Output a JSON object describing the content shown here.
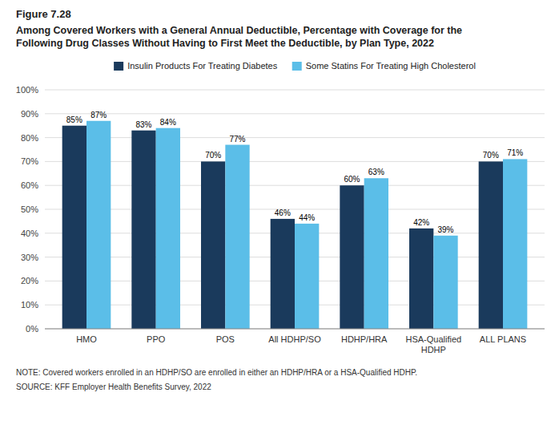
{
  "chart_data": {
    "type": "bar",
    "title": "Among Covered Workers with a General Annual Deductible, Percentage with Coverage for the\nFollowing Drug Classes Without Having to First Meet the Deductible, by Plan Type, 2022",
    "annotations": [
      "Figure 7.28",
      "NOTE: Covered workers enrolled in an HDHP/SO are enrolled in either an HDHP/HRA or a HSA-Qualified HDHP.",
      "SOURCE: KFF Employer Health Benefits Survey, 2022"
    ],
    "categories": [
      "HMO",
      "PPO",
      "POS",
      "All HDHP/SO",
      "HDHP/HRA",
      "HSA-Qualified\nHDHP",
      "ALL PLANS"
    ],
    "series": [
      {
        "name": "Insulin Products For Treating Diabetes",
        "color": "#1a3a5c",
        "values": [
          85,
          83,
          70,
          46,
          60,
          42,
          70
        ],
        "value_labels": [
          "85%",
          "83%",
          "70%",
          "46%",
          "60%",
          "42%",
          "70%"
        ]
      },
      {
        "name": "Some Statins For Treating High Cholesterol",
        "color": "#5bbee8",
        "values": [
          87,
          84,
          77,
          44,
          63,
          39,
          71
        ],
        "value_labels": [
          "87%",
          "84%",
          "77%",
          "44%",
          "63%",
          "39%",
          "71%"
        ]
      }
    ],
    "ylim": [
      0,
      100
    ],
    "yticks": [
      {
        "value": 0,
        "label": "0%"
      },
      {
        "value": 10,
        "label": "10%"
      },
      {
        "value": 20,
        "label": "20%"
      },
      {
        "value": 30,
        "label": "30%"
      },
      {
        "value": 40,
        "label": "40%"
      },
      {
        "value": 50,
        "label": "50%"
      },
      {
        "value": 60,
        "label": "60%"
      },
      {
        "value": 70,
        "label": "70%"
      },
      {
        "value": 80,
        "label": "80%"
      },
      {
        "value": 90,
        "label": "90%"
      },
      {
        "value": 100,
        "label": "100%"
      }
    ],
    "grid": true,
    "legend": "top",
    "data_labels": true
  }
}
